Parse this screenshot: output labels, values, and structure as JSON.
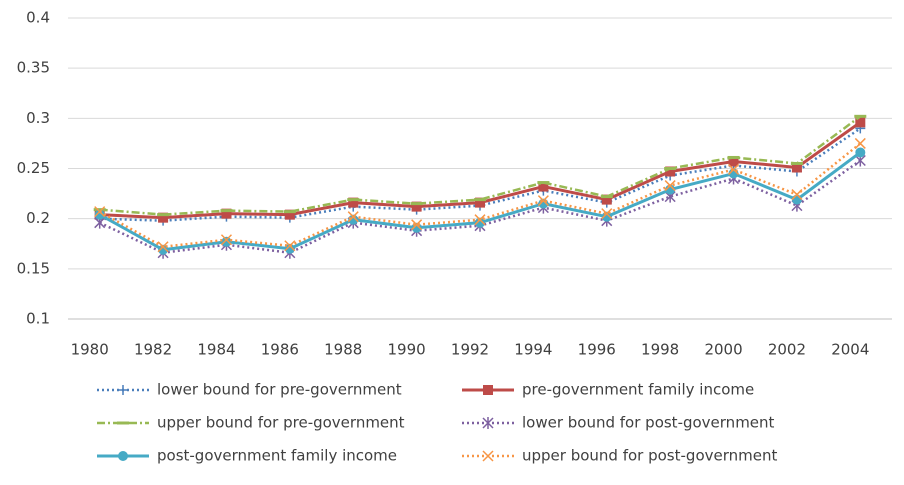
{
  "chart_data": {
    "type": "line",
    "categories": [
      "1980",
      "1982",
      "1984",
      "1986",
      "1988",
      "1990",
      "1992",
      "1994",
      "1996",
      "1998",
      "2000",
      "2002",
      "2004"
    ],
    "series": [
      {
        "name": "lower bound for pre-government",
        "color": "#4a7ebb",
        "dash": "2 3",
        "marker": "plus",
        "values": [
          0.2,
          0.198,
          0.202,
          0.201,
          0.212,
          0.209,
          0.213,
          0.228,
          0.216,
          0.243,
          0.253,
          0.247,
          0.29
        ]
      },
      {
        "name": "pre-government family income",
        "color": "#be4b48",
        "dash": "none",
        "marker": "square",
        "values": [
          0.204,
          0.201,
          0.205,
          0.204,
          0.216,
          0.212,
          0.216,
          0.232,
          0.219,
          0.247,
          0.257,
          0.251,
          0.296
        ]
      },
      {
        "name": "upper bound for pre-government",
        "color": "#98b954",
        "dash": "8 3 2 3",
        "marker": "dash",
        "values": [
          0.209,
          0.204,
          0.208,
          0.207,
          0.219,
          0.215,
          0.219,
          0.236,
          0.222,
          0.25,
          0.261,
          0.255,
          0.302
        ]
      },
      {
        "name": "lower bound for post-government",
        "color": "#7d60a0",
        "dash": "2 3",
        "marker": "star",
        "values": [
          0.196,
          0.166,
          0.174,
          0.166,
          0.196,
          0.188,
          0.193,
          0.211,
          0.198,
          0.222,
          0.24,
          0.213,
          0.258
        ]
      },
      {
        "name": "post-government family income",
        "color": "#46aac5",
        "dash": "none",
        "marker": "circle",
        "values": [
          0.204,
          0.169,
          0.177,
          0.17,
          0.199,
          0.191,
          0.196,
          0.215,
          0.202,
          0.229,
          0.245,
          0.219,
          0.266
        ]
      },
      {
        "name": "upper bound for post-government",
        "color": "#f79646",
        "dash": "2 3",
        "marker": "x",
        "values": [
          0.207,
          0.172,
          0.179,
          0.173,
          0.202,
          0.194,
          0.199,
          0.218,
          0.205,
          0.233,
          0.249,
          0.224,
          0.275
        ]
      }
    ],
    "ylim": [
      0.1,
      0.4
    ],
    "yticks": [
      0.1,
      0.15,
      0.2,
      0.25,
      0.3,
      0.35,
      0.4
    ],
    "grid": true
  }
}
